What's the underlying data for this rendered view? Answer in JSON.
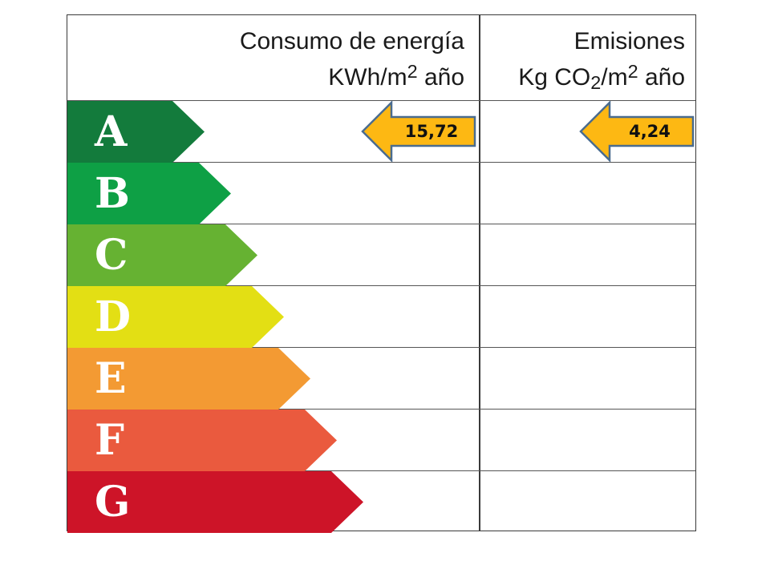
{
  "header": {
    "energy_title": "Consumo de energía",
    "energy_unit_prefix": "KWh/m",
    "energy_unit_exp": "2",
    "energy_unit_suffix": " año",
    "emissions_title": "Emisiones",
    "emissions_unit_prefix": "Kg CO",
    "emissions_unit_sub": "2",
    "emissions_unit_mid": "/m",
    "emissions_unit_exp": "2",
    "emissions_unit_suffix": " año"
  },
  "ratings": [
    {
      "letter": "A",
      "color": "#137b3c"
    },
    {
      "letter": "B",
      "color": "#0ea045"
    },
    {
      "letter": "C",
      "color": "#66b232"
    },
    {
      "letter": "D",
      "color": "#e3df14"
    },
    {
      "letter": "E",
      "color": "#f39a33"
    },
    {
      "letter": "F",
      "color": "#ea5a3e"
    },
    {
      "letter": "G",
      "color": "#cd1428"
    }
  ],
  "energy_indicator": {
    "rating": "A",
    "value": "15,72",
    "color": "#fdb813"
  },
  "emissions_indicator": {
    "rating": "A",
    "value": "4,24",
    "color": "#fdb813"
  }
}
